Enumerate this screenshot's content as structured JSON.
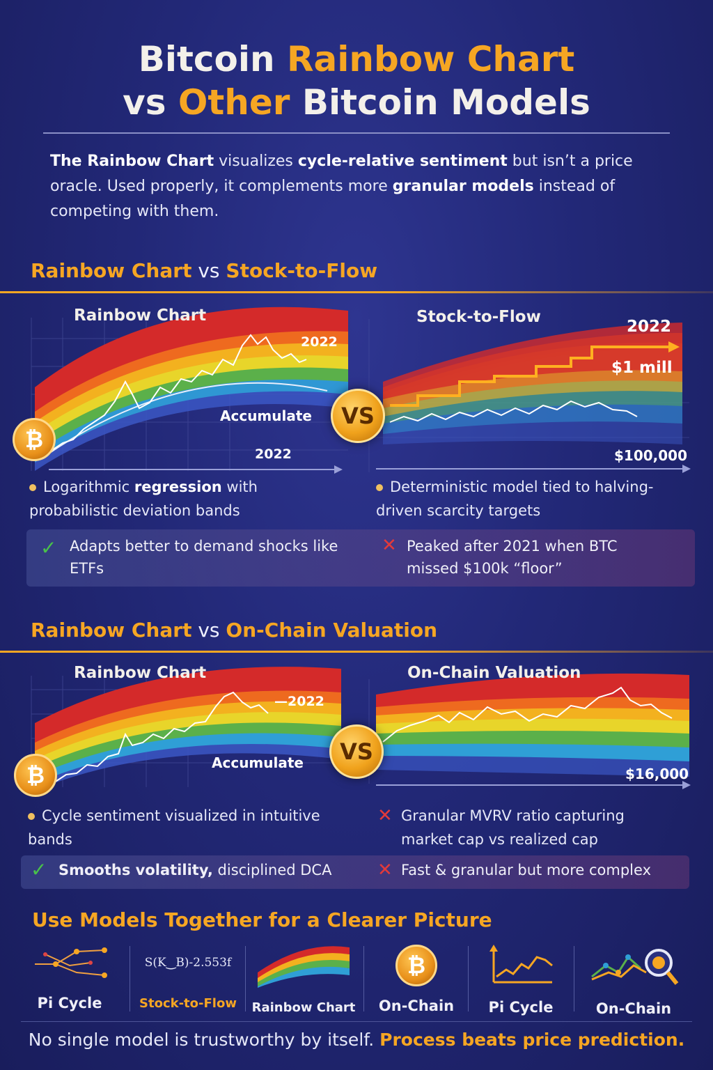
{
  "title": {
    "line1_a": "Bitcoin ",
    "line1_b": "Rainbow Chart",
    "line2_a": "vs ",
    "line2_b": "Other",
    "line2_c": " Bitcoin Models"
  },
  "intro": {
    "p1_bold": "The Rainbow Chart",
    "p2": " visualizes ",
    "p3_bold": "cycle-relative sentiment",
    "p4": " but isn’t a price oracle. Used properly, it complements more ",
    "p5_bold": "granular models",
    "p6": " instead of competing with them."
  },
  "section1": {
    "head_a": "Rainbow Chart",
    "head_vs": " vs ",
    "head_b": "Stock-to-Flow",
    "left_title": "Rainbow Chart",
    "left_year_top": "2022",
    "left_zone": "Accumulate",
    "left_year_axis": "2022",
    "right_title": "Stock-to-Flow",
    "right_year": "2022",
    "right_target": "$1 mill",
    "right_axis": "$100,000",
    "vs": "VS",
    "coin": "₿",
    "left_bullet_a": "Logarithmic ",
    "left_bullet_b": "regression",
    "left_bullet_c": " with probabilistic deviation bands",
    "right_bullet": "Deterministic model tied to halving-driven scarcity targets",
    "left_strip": "Adapts better to demand shocks like ETFs",
    "right_strip": "Peaked after 2021 when BTC missed $100k “floor”"
  },
  "section2": {
    "head_a": "Rainbow Chart",
    "head_vs": " vs ",
    "head_b": "On-Chain Valuation",
    "left_title": "Rainbow Chart",
    "left_year_top": "—2022",
    "left_zone": "Accumulate",
    "right_title": "On-Chain Valuation",
    "right_axis": "$16,000",
    "vs": "VS",
    "coin": "₿",
    "left_bullet": "Cycle sentiment visualized in intuitive bands",
    "right_bullet": "Granular MVRV ratio capturing market cap vs realized cap",
    "left_strip_bold": "Smooths volatility,",
    "left_strip_rest": " disciplined DCA",
    "right_strip": "Fast & granular but more complex"
  },
  "tools": {
    "heading": "Use Models Together for a Clearer Picture",
    "formula": "S(K‿B)-2.553f",
    "coin": "₿",
    "items": [
      {
        "label": "Pi Cycle",
        "icon": "pi-cycle-network-icon"
      },
      {
        "label": "Stock-to-Flow",
        "icon": "formula-icon"
      },
      {
        "label": "Rainbow Chart",
        "icon": "rainbow-arc-icon"
      },
      {
        "label": "On-Chain",
        "icon": "bitcoin-coin-icon"
      },
      {
        "label": "Pi  Cycle",
        "icon": "line-chart-icon"
      },
      {
        "label": "On-Chain",
        "icon": "magnifier-chart-icon"
      }
    ]
  },
  "footer": {
    "normal": "No single model is trustworthy by itself. ",
    "strong": "Process beats price prediction."
  },
  "colors": {
    "accent": "#f6a623",
    "background": "#222877",
    "rainbow": [
      "#d42a2a",
      "#ee6a1f",
      "#f3b11f",
      "#e8d52a",
      "#5bb04a",
      "#2f9fd6",
      "#3b57c4"
    ]
  }
}
